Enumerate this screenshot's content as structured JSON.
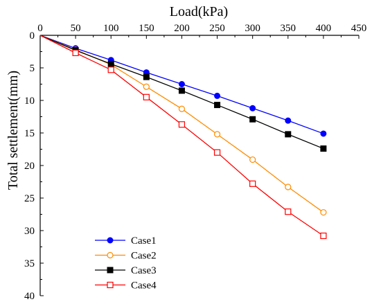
{
  "chart_data": {
    "type": "line",
    "title": "",
    "xlabel": "Load(kPa)",
    "ylabel": "Total settlement(mm)",
    "x_axis_position": "top",
    "y_axis_inverted": true,
    "xlim": [
      0,
      450
    ],
    "ylim": [
      0,
      40
    ],
    "xticks": [
      "0",
      "50",
      "100",
      "150",
      "200",
      "250",
      "300",
      "350",
      "400",
      "450"
    ],
    "yticks": [
      "0",
      "5",
      "10",
      "15",
      "20",
      "25",
      "30",
      "35",
      "40"
    ],
    "grid": false,
    "legend_position": "bottom-left",
    "x": [
      0,
      50,
      100,
      150,
      200,
      250,
      300,
      350,
      400
    ],
    "series": [
      {
        "name": "Case1",
        "color": "#0000ff",
        "marker": "filled-circle",
        "values": [
          0,
          2.0,
          3.8,
          5.7,
          7.5,
          9.3,
          11.2,
          13.1,
          15.1
        ]
      },
      {
        "name": "Case2",
        "color": "#ff8c00",
        "marker": "open-circle",
        "values": [
          0,
          2.2,
          4.5,
          7.9,
          11.3,
          15.2,
          19.1,
          23.3,
          27.2
        ]
      },
      {
        "name": "Case3",
        "color": "#000000",
        "marker": "filled-square",
        "values": [
          0,
          2.3,
          4.4,
          6.4,
          8.5,
          10.7,
          12.9,
          15.2,
          17.4
        ]
      },
      {
        "name": "Case4",
        "color": "#ff0000",
        "marker": "open-square",
        "values": [
          0,
          2.7,
          5.3,
          9.5,
          13.7,
          18.0,
          22.8,
          27.1,
          30.8
        ]
      }
    ]
  }
}
